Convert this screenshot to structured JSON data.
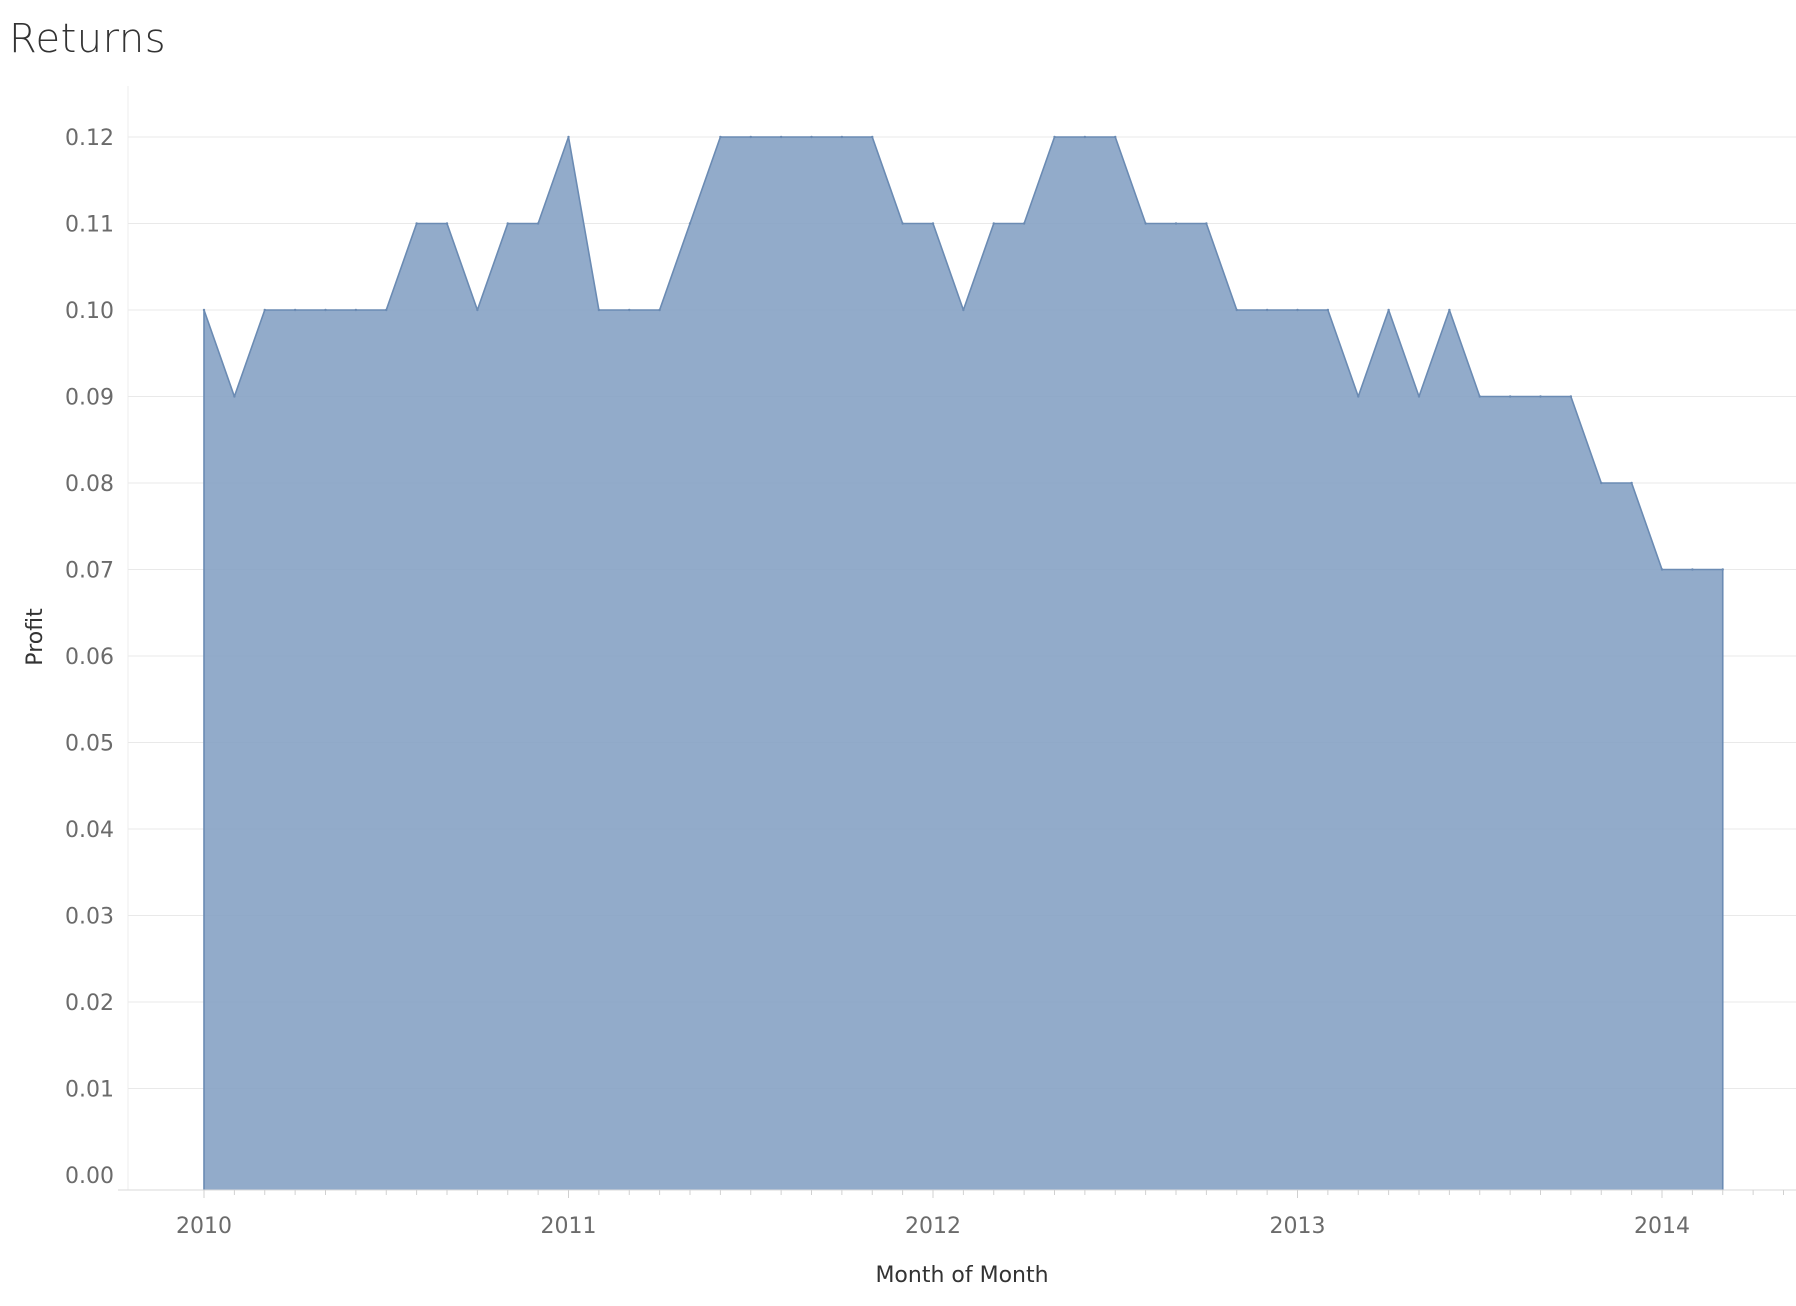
{
  "chart_data": {
    "type": "area",
    "title": "Returns",
    "xlabel": "Month of Month",
    "ylabel": "Profit",
    "ylim": [
      0,
      0.12
    ],
    "yticks": [
      "0.00",
      "0.01",
      "0.02",
      "0.03",
      "0.04",
      "0.05",
      "0.06",
      "0.07",
      "0.08",
      "0.09",
      "0.10",
      "0.11",
      "0.12"
    ],
    "xticks": [
      "2010",
      "2011",
      "2012",
      "2013",
      "2014"
    ],
    "grid": true,
    "color": "#86a2c4",
    "stroke_color": "#6b8bb3",
    "series": [
      {
        "x": [
          "2010-01",
          "2010-02",
          "2010-03",
          "2010-04",
          "2010-05",
          "2010-06",
          "2010-07",
          "2010-08",
          "2010-09",
          "2010-10",
          "2010-11",
          "2010-12",
          "2011-01",
          "2011-02",
          "2011-03",
          "2011-04",
          "2011-05",
          "2011-06",
          "2011-07",
          "2011-08",
          "2011-09",
          "2011-10",
          "2011-11",
          "2011-12",
          "2012-01",
          "2012-02",
          "2012-03",
          "2012-04",
          "2012-05",
          "2012-06",
          "2012-07",
          "2012-08",
          "2012-09",
          "2012-10",
          "2012-11",
          "2012-12",
          "2013-01",
          "2013-02",
          "2013-03",
          "2013-04",
          "2013-05",
          "2013-06",
          "2013-07",
          "2013-08",
          "2013-09",
          "2013-10",
          "2013-11",
          "2013-12",
          "2014-01",
          "2014-02",
          "2014-03"
        ],
        "values": [
          0.1,
          0.09,
          0.1,
          0.1,
          0.1,
          0.1,
          0.1,
          0.11,
          0.11,
          0.1,
          0.11,
          0.11,
          0.12,
          0.1,
          0.1,
          0.1,
          0.11,
          0.12,
          0.12,
          0.12,
          0.12,
          0.12,
          0.12,
          0.11,
          0.11,
          0.1,
          0.11,
          0.11,
          0.12,
          0.12,
          0.12,
          0.11,
          0.11,
          0.11,
          0.1,
          0.1,
          0.1,
          0.1,
          0.09,
          0.1,
          0.09,
          0.1,
          0.09,
          0.09,
          0.09,
          0.09,
          0.08,
          0.08,
          0.07,
          0.07,
          0.07
        ]
      }
    ]
  }
}
